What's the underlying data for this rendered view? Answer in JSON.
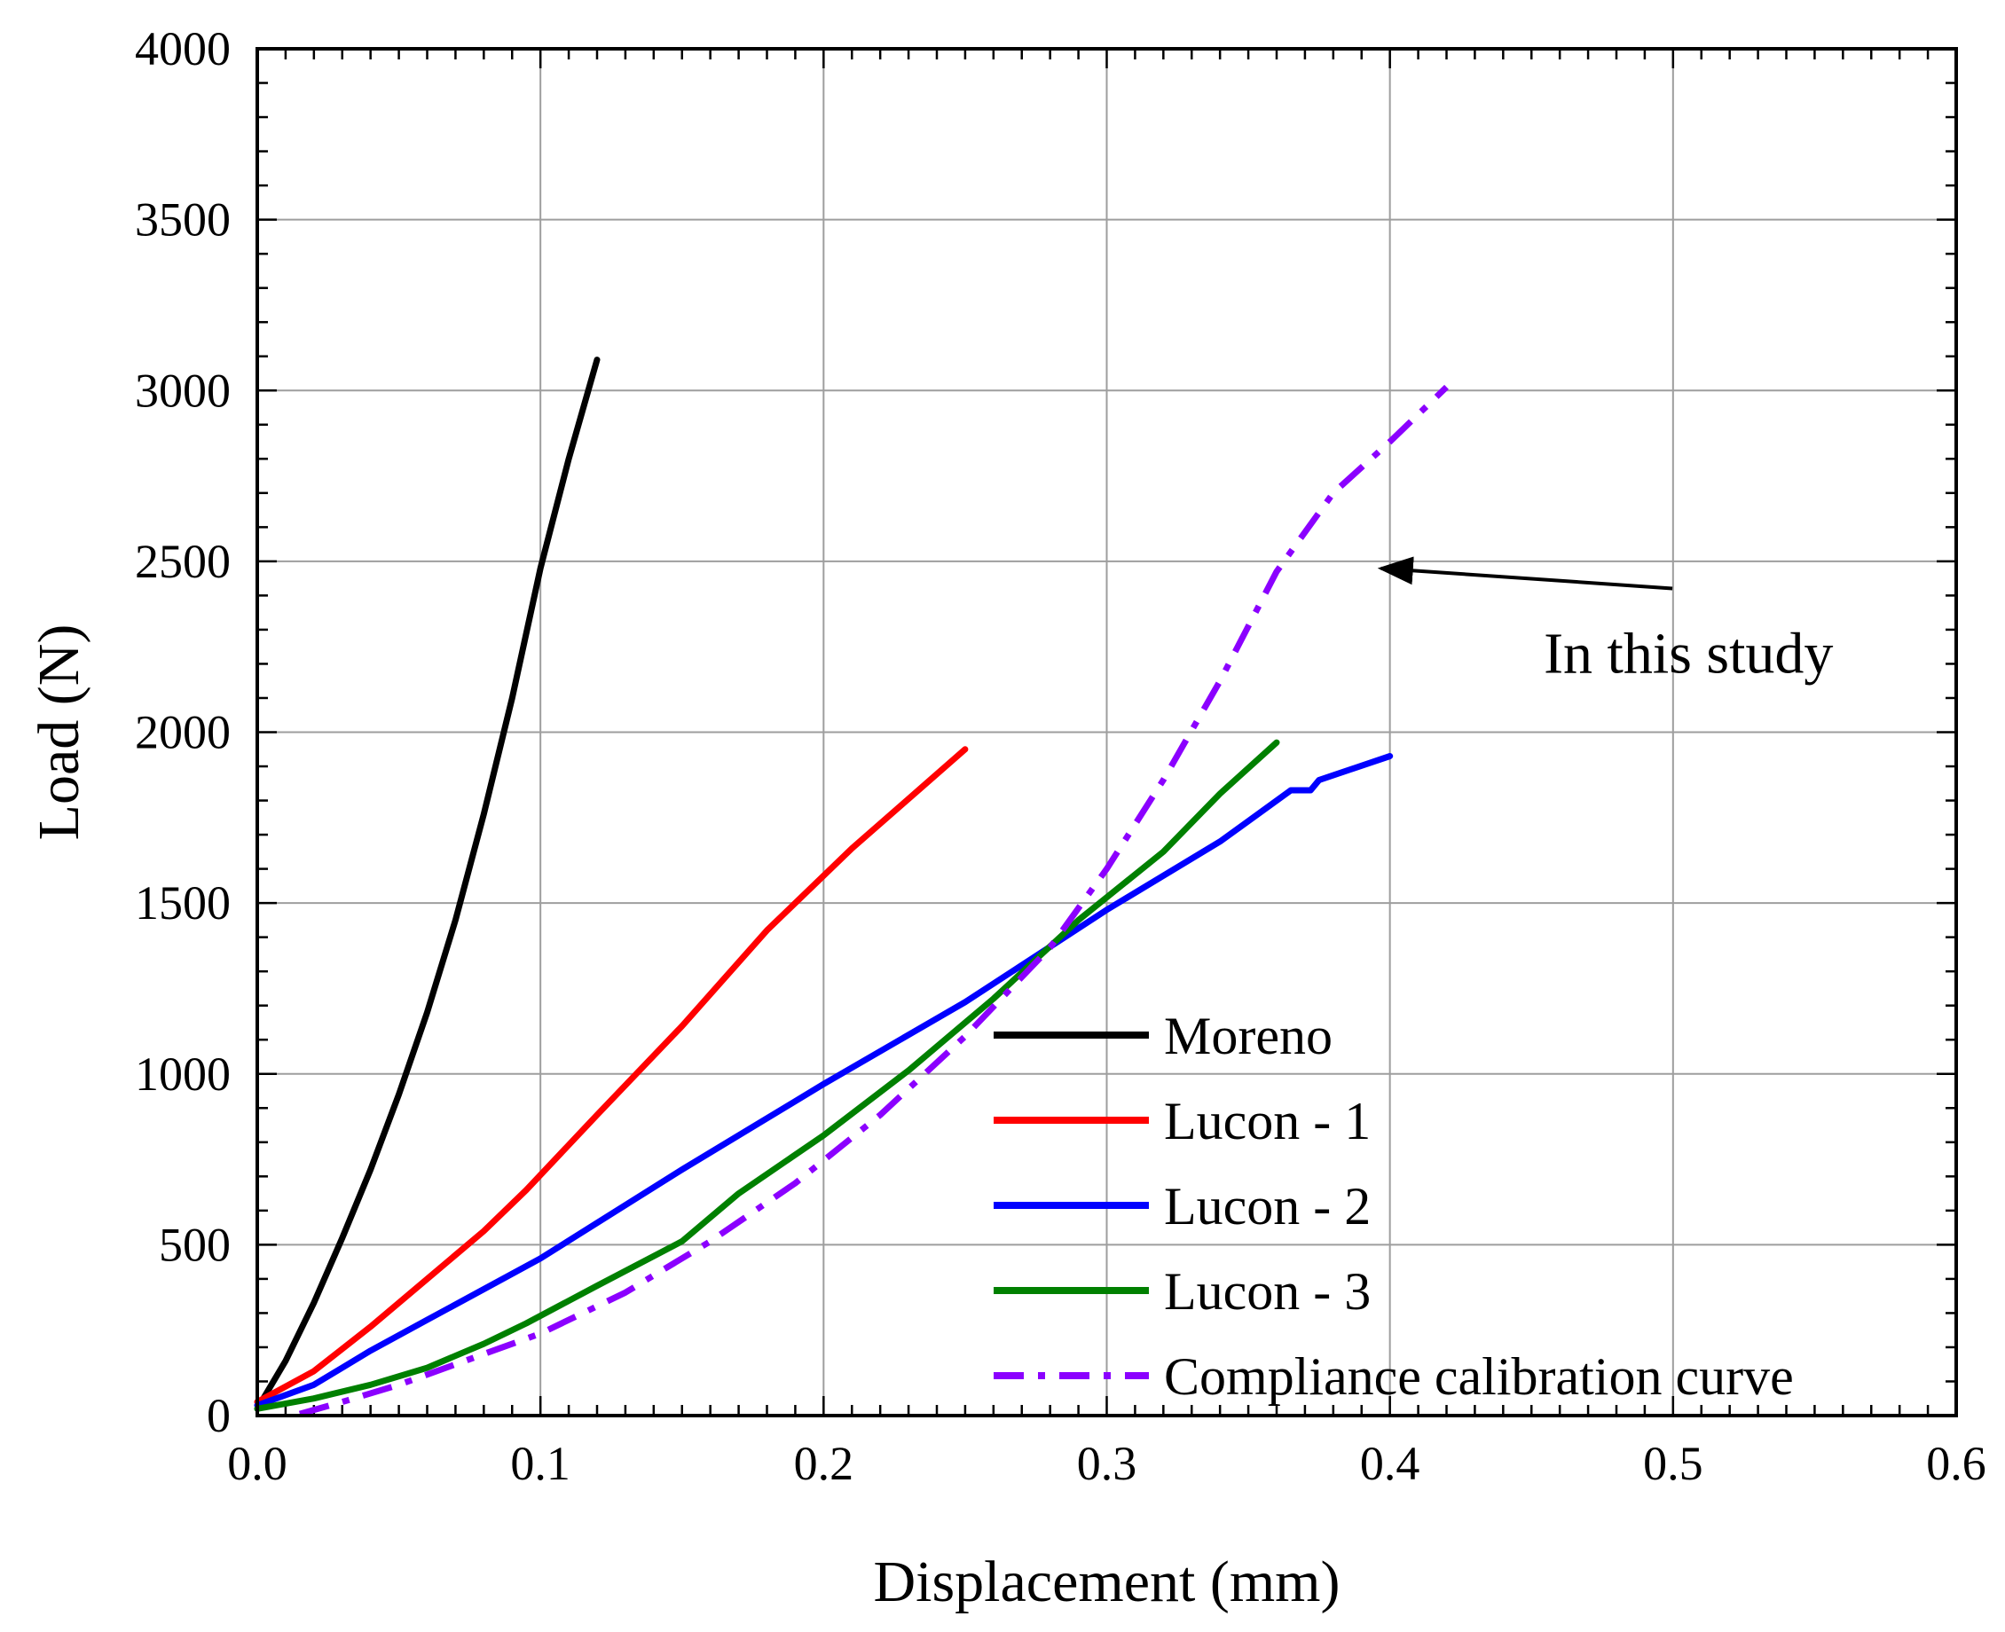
{
  "chart_data": {
    "type": "line",
    "title": "",
    "xlabel": "Displacement (mm)",
    "ylabel": "Load (N)",
    "xlim": [
      0,
      0.6
    ],
    "ylim": [
      0,
      4000
    ],
    "grid": true,
    "legend_position": "bottom-right",
    "xticks": [
      "0.0",
      "0.1",
      "0.2",
      "0.3",
      "0.4",
      "0.5",
      "0.6"
    ],
    "xtick_values": [
      0,
      0.1,
      0.2,
      0.3,
      0.4,
      0.5,
      0.6
    ],
    "yticks": [
      "0",
      "500",
      "1000",
      "1500",
      "2000",
      "2500",
      "3000",
      "3500",
      "4000"
    ],
    "ytick_values": [
      0,
      500,
      1000,
      1500,
      2000,
      2500,
      3000,
      3500,
      4000
    ],
    "series": [
      {
        "name": "Moreno",
        "color": "#000000",
        "style": "solid",
        "points": [
          [
            0,
            20
          ],
          [
            0.01,
            160
          ],
          [
            0.02,
            330
          ],
          [
            0.03,
            520
          ],
          [
            0.04,
            720
          ],
          [
            0.05,
            940
          ],
          [
            0.06,
            1180
          ],
          [
            0.07,
            1450
          ],
          [
            0.08,
            1760
          ],
          [
            0.09,
            2100
          ],
          [
            0.1,
            2480
          ],
          [
            0.11,
            2800
          ],
          [
            0.12,
            3090
          ]
        ]
      },
      {
        "name": "Lucon - 1",
        "color": "#ff0000",
        "style": "solid",
        "points": [
          [
            0,
            40
          ],
          [
            0.02,
            130
          ],
          [
            0.04,
            260
          ],
          [
            0.06,
            400
          ],
          [
            0.08,
            540
          ],
          [
            0.095,
            660
          ],
          [
            0.12,
            880
          ],
          [
            0.15,
            1140
          ],
          [
            0.18,
            1420
          ],
          [
            0.21,
            1660
          ],
          [
            0.25,
            1950
          ]
        ]
      },
      {
        "name": "Lucon - 2",
        "color": "#0000ff",
        "style": "solid",
        "points": [
          [
            0,
            30
          ],
          [
            0.02,
            90
          ],
          [
            0.04,
            190
          ],
          [
            0.06,
            280
          ],
          [
            0.08,
            370
          ],
          [
            0.1,
            460
          ],
          [
            0.15,
            720
          ],
          [
            0.2,
            970
          ],
          [
            0.25,
            1210
          ],
          [
            0.3,
            1480
          ],
          [
            0.34,
            1680
          ],
          [
            0.365,
            1830
          ],
          [
            0.372,
            1830
          ],
          [
            0.375,
            1860
          ],
          [
            0.4,
            1930
          ]
        ]
      },
      {
        "name": "Lucon - 3",
        "color": "#008000",
        "style": "solid",
        "points": [
          [
            0,
            20
          ],
          [
            0.02,
            50
          ],
          [
            0.04,
            90
          ],
          [
            0.06,
            140
          ],
          [
            0.08,
            210
          ],
          [
            0.095,
            270
          ],
          [
            0.12,
            380
          ],
          [
            0.15,
            510
          ],
          [
            0.17,
            650
          ],
          [
            0.2,
            820
          ],
          [
            0.23,
            1010
          ],
          [
            0.26,
            1220
          ],
          [
            0.29,
            1450
          ],
          [
            0.32,
            1650
          ],
          [
            0.34,
            1820
          ],
          [
            0.36,
            1970
          ]
        ]
      },
      {
        "name": "Compliance calibration curve",
        "color": "#8b00ff",
        "style": "dashdot",
        "points": [
          [
            0.015,
            5
          ],
          [
            0.03,
            40
          ],
          [
            0.05,
            90
          ],
          [
            0.07,
            150
          ],
          [
            0.1,
            240
          ],
          [
            0.13,
            360
          ],
          [
            0.16,
            510
          ],
          [
            0.19,
            680
          ],
          [
            0.22,
            880
          ],
          [
            0.25,
            1110
          ],
          [
            0.28,
            1370
          ],
          [
            0.3,
            1600
          ],
          [
            0.32,
            1860
          ],
          [
            0.34,
            2150
          ],
          [
            0.36,
            2470
          ],
          [
            0.38,
            2700
          ],
          [
            0.4,
            2850
          ],
          [
            0.42,
            3010
          ]
        ]
      }
    ],
    "annotation": {
      "text": "In this study",
      "points_to": [
        0.39,
        2500
      ],
      "text_at": [
        0.47,
        2200
      ]
    }
  }
}
